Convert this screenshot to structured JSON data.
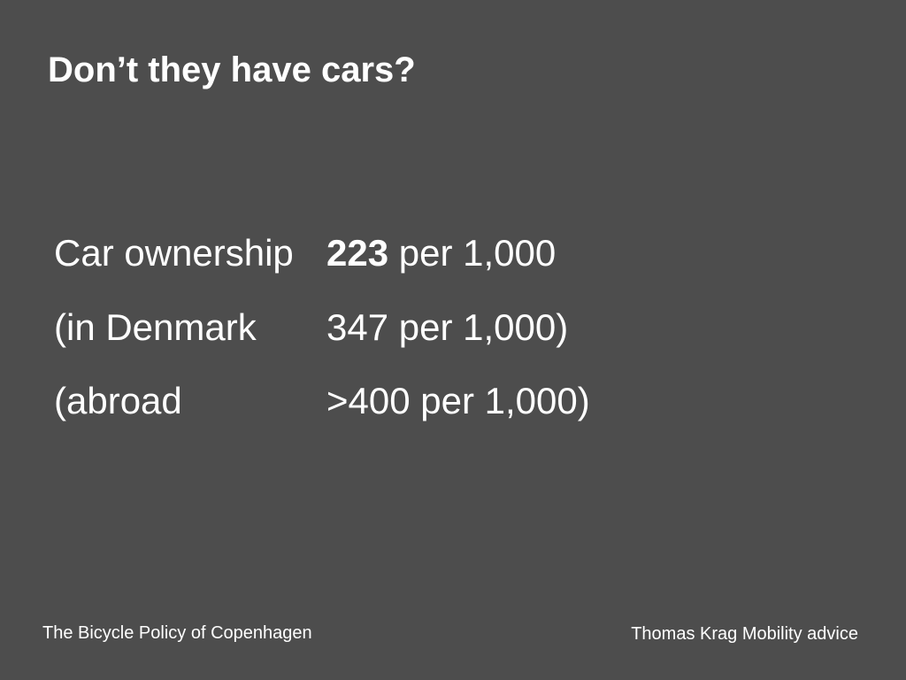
{
  "slide": {
    "title": "Don’t they have cars?"
  },
  "stats": {
    "rows": [
      {
        "label": "Car ownership",
        "value_bold": "223",
        "value_rest": " per 1,000"
      },
      {
        "label": "(in Denmark",
        "value_bold": "",
        "value_rest": "347 per 1,000)"
      },
      {
        "label": "(abroad",
        "value_bold": "",
        "value_rest": ">400 per 1,000)"
      }
    ]
  },
  "footer": {
    "left": "The Bicycle Policy of Copenhagen",
    "right": "Thomas Krag Mobility advice"
  },
  "colors": {
    "background": "#4d4d4d",
    "text": "#ffffff"
  }
}
